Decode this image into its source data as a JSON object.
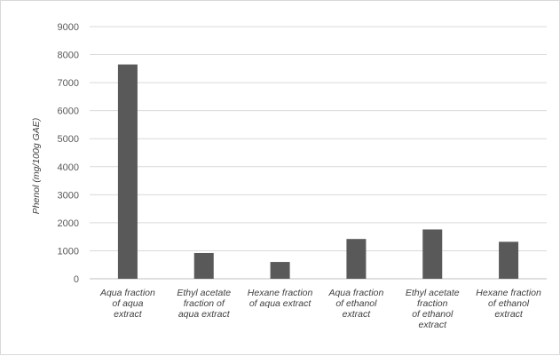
{
  "chart_data": {
    "type": "bar",
    "title": "",
    "xlabel": "",
    "ylabel": "Phenol (mg/100g GAE)",
    "ylim": [
      0,
      9000
    ],
    "yticks": [
      0,
      1000,
      2000,
      3000,
      4000,
      5000,
      6000,
      7000,
      8000,
      9000
    ],
    "grid": true,
    "legend": "none",
    "categories": [
      [
        "Aqua fraction",
        "of aqua",
        "extract"
      ],
      [
        "Ethyl acetate",
        "fraction of",
        "aqua extract"
      ],
      [
        "Hexane fraction",
        "of aqua extract"
      ],
      [
        "Aqua fraction",
        "of ethanol",
        "extract"
      ],
      [
        "Ethyl acetate",
        "fraction",
        "of ethanol",
        "extract"
      ],
      [
        "Hexane fraction",
        "of ethanol",
        "extract"
      ]
    ],
    "values": [
      7650,
      920,
      600,
      1420,
      1760,
      1320
    ],
    "colors": {
      "bar": "#595959",
      "grid": "#d9d9d9",
      "axis": "#bfbfbf"
    }
  }
}
